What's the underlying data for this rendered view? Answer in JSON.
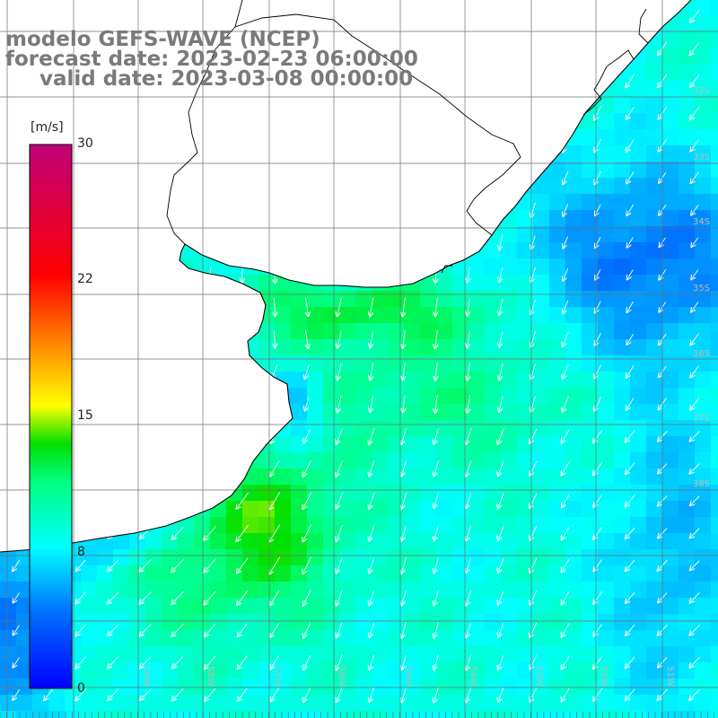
{
  "header": {
    "line1": "modelo GEFS-WAVE (NCEP)",
    "line2": "forecast date: 2023-02-23 06:00:00",
    "line3": "valid date: 2023-03-08 00:00:00"
  },
  "colorbar": {
    "unit": "[m/s]",
    "ticks": [
      "30",
      "22",
      "15",
      "8",
      "0"
    ],
    "min": 0,
    "max": 30,
    "colors": [
      "#0000ff",
      "#00c0ff",
      "#00ffff",
      "#00ff80",
      "#00d000",
      "#ffff00",
      "#ff8000",
      "#ff0000",
      "#c0007a"
    ]
  },
  "map": {
    "field": "wind speed",
    "wind_direction": "toward southwest",
    "lat_labels": [
      "32S",
      "33S",
      "34S",
      "35S",
      "36S",
      "37S",
      "38S"
    ],
    "lon_labels": [
      "59W",
      "58W",
      "57W",
      "56W",
      "55W",
      "54W",
      "53W",
      "52W",
      "51W"
    ]
  }
}
